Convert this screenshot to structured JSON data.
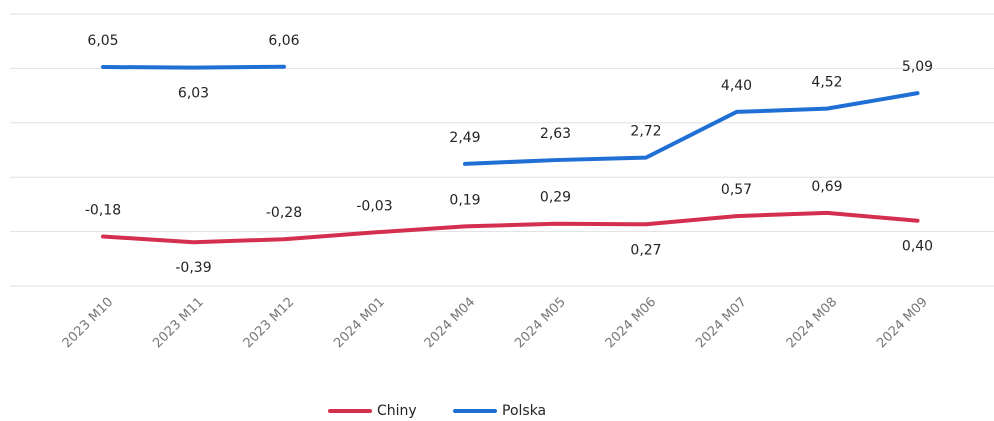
{
  "chart_data": {
    "type": "line",
    "categories": [
      "2023 M10",
      "2023 M11",
      "2023 M12",
      "2024 M01",
      "2024 M04",
      "2024 M05",
      "2024 M06",
      "2024 M07",
      "2024 M08",
      "2024 M09"
    ],
    "series": [
      {
        "name": "Chiny",
        "color": "#d42f4f",
        "values": [
          -0.18,
          -0.39,
          -0.28,
          -0.03,
          0.19,
          0.29,
          0.27,
          0.57,
          0.69,
          0.4
        ],
        "value_labels": [
          "-0,18",
          "-0,39",
          "-0,28",
          "-0,03",
          "0,19",
          "0,29",
          "0,27",
          "0,57",
          "0,69",
          "0,40"
        ]
      },
      {
        "name": "Polska",
        "color": "#1f6fd4",
        "values": [
          6.05,
          6.03,
          6.06,
          null,
          2.49,
          2.63,
          2.72,
          4.4,
          4.52,
          5.09
        ],
        "value_labels": [
          "6,05",
          "6,03",
          "6,06",
          null,
          "2,49",
          "2,63",
          "2,72",
          "4,40",
          "4,52",
          "5,09"
        ]
      }
    ],
    "ylim": [
      -2,
      8
    ],
    "yticks": [
      -2,
      0,
      2,
      4,
      6,
      8
    ],
    "grid": true,
    "legend": "bottom"
  }
}
